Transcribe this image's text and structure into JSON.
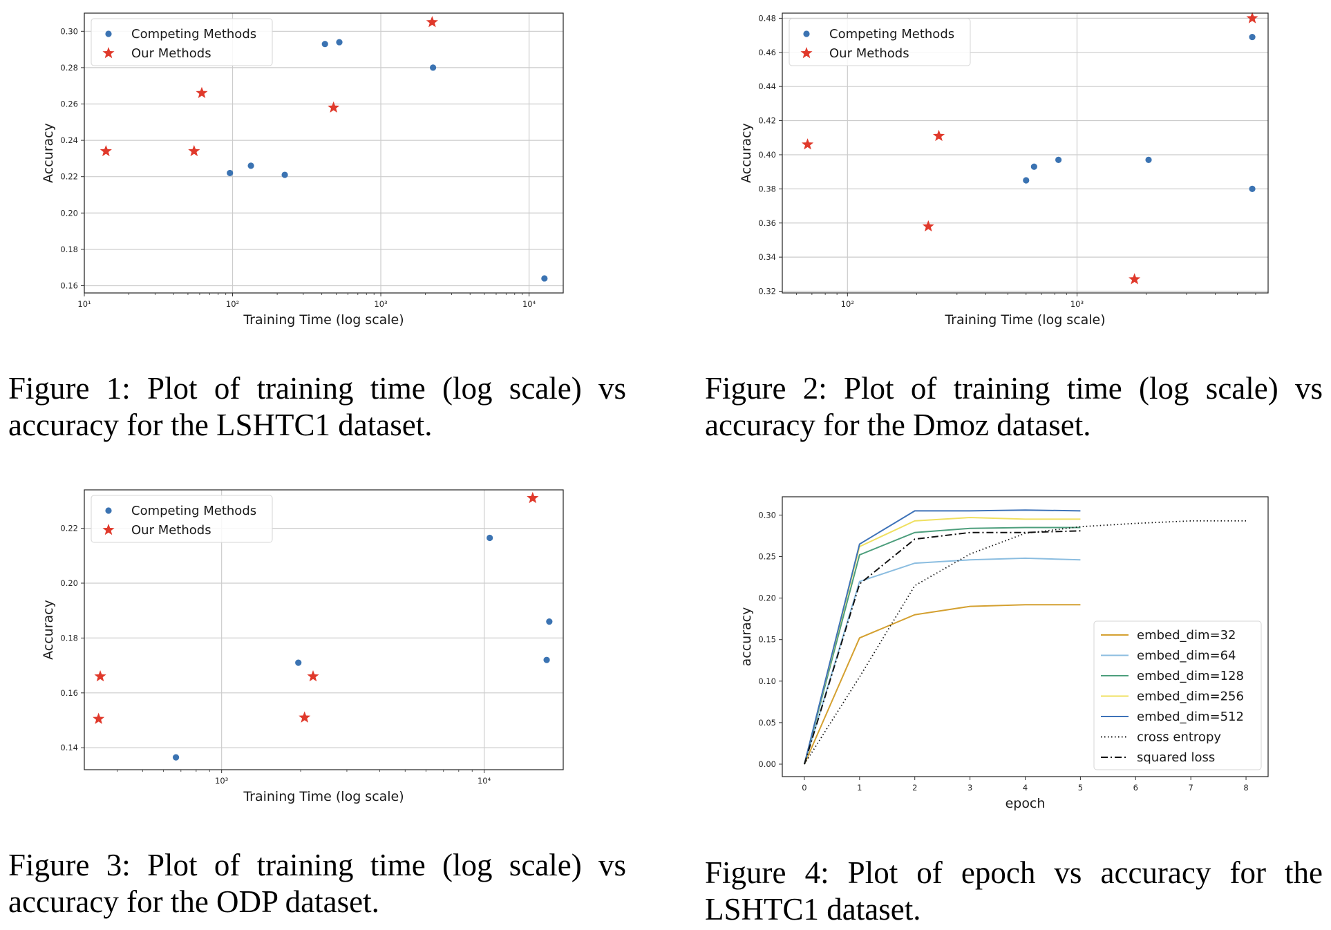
{
  "colors": {
    "competing": "#3b73b2",
    "ours": "#e0392b",
    "grid": "#cccccc"
  },
  "captions": {
    "fig1": "Figure 1: Plot of training time (log scale) vs accuracy for the LSHTC1 dataset.",
    "fig2": "Figure 2: Plot of training time (log scale) vs accuracy for the Dmoz dataset.",
    "fig3": "Figure 3: Plot of training time (log scale) vs accuracy for the ODP dataset.",
    "fig4": "Figure 4: Plot of epoch vs accuracy for the LSHTC1 dataset."
  },
  "chart_data": [
    {
      "type": "scatter",
      "xlabel": "Training Time (log scale)",
      "ylabel": "Accuracy",
      "xscale": "log",
      "xlim": [
        10,
        17000
      ],
      "ylim": [
        0.156,
        0.31
      ],
      "xticks": [
        10,
        100,
        1000,
        10000
      ],
      "xtick_labels": [
        "10¹",
        "10²",
        "10³",
        "10⁴"
      ],
      "yticks": [
        0.16,
        0.18,
        0.2,
        0.22,
        0.24,
        0.26,
        0.28,
        0.3
      ],
      "ytick_labels": [
        "0.16",
        "0.18",
        "0.20",
        "0.22",
        "0.24",
        "0.26",
        "0.28",
        "0.30"
      ],
      "grid": true,
      "legend": "top-left",
      "series": [
        {
          "name": "Competing Methods",
          "marker": "circle",
          "points": [
            [
              96,
              0.222
            ],
            [
              133,
              0.226
            ],
            [
              225,
              0.221
            ],
            [
              420,
              0.293
            ],
            [
              525,
              0.294
            ],
            [
              2250,
              0.28
            ],
            [
              12700,
              0.164
            ]
          ]
        },
        {
          "name": "Our Methods",
          "marker": "star",
          "points": [
            [
              14,
              0.234
            ],
            [
              55,
              0.234
            ],
            [
              62,
              0.266
            ],
            [
              480,
              0.258
            ],
            [
              2220,
              0.305
            ]
          ]
        }
      ]
    },
    {
      "type": "scatter",
      "xlabel": "Training Time (log scale)",
      "ylabel": "Accuracy",
      "xscale": "log",
      "xlim": [
        52,
        6800
      ],
      "ylim": [
        0.319,
        0.483
      ],
      "xticks": [
        100,
        1000
      ],
      "xtick_labels": [
        "10²",
        "10³"
      ],
      "yticks": [
        0.32,
        0.34,
        0.36,
        0.38,
        0.4,
        0.42,
        0.44,
        0.46,
        0.48
      ],
      "ytick_labels": [
        "0.32",
        "0.34",
        "0.36",
        "0.38",
        "0.40",
        "0.42",
        "0.44",
        "0.46",
        "0.48"
      ],
      "grid": true,
      "legend": "top-left",
      "series": [
        {
          "name": "Competing Methods",
          "marker": "circle",
          "points": [
            [
              600,
              0.385
            ],
            [
              650,
              0.393
            ],
            [
              830,
              0.397
            ],
            [
              2050,
              0.397
            ],
            [
              5800,
              0.469
            ],
            [
              5800,
              0.38
            ]
          ]
        },
        {
          "name": "Our Methods",
          "marker": "star",
          "points": [
            [
              67,
              0.406
            ],
            [
              225,
              0.358
            ],
            [
              250,
              0.411
            ],
            [
              1780,
              0.327
            ],
            [
              5800,
              0.48
            ]
          ]
        }
      ]
    },
    {
      "type": "scatter",
      "xlabel": "Training Time (log scale)",
      "ylabel": "Accuracy",
      "xscale": "log",
      "xlim": [
        300,
        20000
      ],
      "ylim": [
        0.132,
        0.234
      ],
      "xticks": [
        1000,
        10000
      ],
      "xtick_labels": [
        "10³",
        "10⁴"
      ],
      "yticks": [
        0.14,
        0.16,
        0.18,
        0.2,
        0.22
      ],
      "ytick_labels": [
        "0.14",
        "0.16",
        "0.18",
        "0.20",
        "0.22"
      ],
      "grid": true,
      "legend": "top-left",
      "series": [
        {
          "name": "Competing Methods",
          "marker": "circle",
          "points": [
            [
              670,
              0.1365
            ],
            [
              1960,
              0.171
            ],
            [
              10500,
              0.2165
            ],
            [
              17700,
              0.186
            ],
            [
              17300,
              0.172
            ]
          ]
        },
        {
          "name": "Our Methods",
          "marker": "star",
          "points": [
            [
              340,
              0.1505
            ],
            [
              345,
              0.166
            ],
            [
              2070,
              0.151
            ],
            [
              2230,
              0.166
            ],
            [
              15300,
              0.231
            ]
          ]
        }
      ]
    },
    {
      "type": "line",
      "xlabel": "epoch",
      "ylabel": "accuracy",
      "xlim": [
        -0.4,
        8.4
      ],
      "ylim": [
        -0.015,
        0.322
      ],
      "xticks": [
        0,
        1,
        2,
        3,
        4,
        5,
        6,
        7,
        8
      ],
      "xtick_labels": [
        "0",
        "1",
        "2",
        "3",
        "4",
        "5",
        "6",
        "7",
        "8"
      ],
      "yticks": [
        0.0,
        0.05,
        0.1,
        0.15,
        0.2,
        0.25,
        0.3
      ],
      "ytick_labels": [
        "0.00",
        "0.05",
        "0.10",
        "0.15",
        "0.20",
        "0.25",
        "0.30"
      ],
      "grid": false,
      "legend": "lower-right",
      "series": [
        {
          "name": "embed_dim=32",
          "color": "#d4a030",
          "style": "solid",
          "x": [
            0,
            1,
            2,
            3,
            4,
            5
          ],
          "values": [
            0.0,
            0.152,
            0.18,
            0.19,
            0.192,
            0.192
          ]
        },
        {
          "name": "embed_dim=64",
          "color": "#8bbde0",
          "style": "solid",
          "x": [
            0,
            1,
            2,
            3,
            4,
            5
          ],
          "values": [
            0.0,
            0.22,
            0.242,
            0.246,
            0.248,
            0.246
          ]
        },
        {
          "name": "embed_dim=128",
          "color": "#4c9e7c",
          "style": "solid",
          "x": [
            0,
            1,
            2,
            3,
            4,
            5
          ],
          "values": [
            0.0,
            0.252,
            0.279,
            0.284,
            0.285,
            0.285
          ]
        },
        {
          "name": "embed_dim=256",
          "color": "#efe060",
          "style": "solid",
          "x": [
            0,
            1,
            2,
            3,
            4,
            5
          ],
          "values": [
            0.0,
            0.262,
            0.293,
            0.297,
            0.295,
            0.295
          ]
        },
        {
          "name": "embed_dim=512",
          "color": "#3d72b8",
          "style": "solid",
          "x": [
            0,
            1,
            2,
            3,
            4,
            5
          ],
          "values": [
            0.0,
            0.265,
            0.305,
            0.305,
            0.306,
            0.305
          ]
        },
        {
          "name": "cross entropy",
          "color": "#111111",
          "style": "dotted",
          "x": [
            0,
            1,
            2,
            3,
            4,
            5,
            6,
            7,
            8
          ],
          "values": [
            0.0,
            0.105,
            0.215,
            0.253,
            0.278,
            0.286,
            0.29,
            0.293,
            0.293
          ]
        },
        {
          "name": "squared loss",
          "color": "#111111",
          "style": "dashdot",
          "x": [
            0,
            1,
            2,
            3,
            4,
            5
          ],
          "values": [
            0.0,
            0.217,
            0.271,
            0.279,
            0.279,
            0.281
          ]
        }
      ]
    }
  ]
}
